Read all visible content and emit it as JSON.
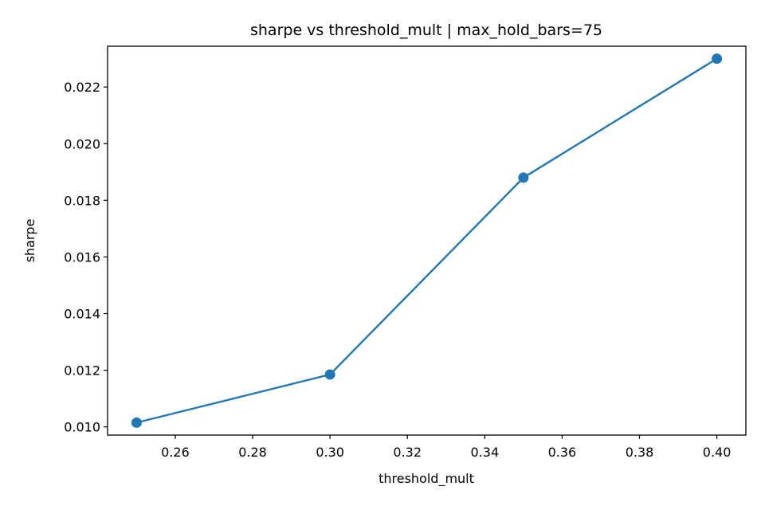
{
  "chart_data": {
    "type": "line",
    "title": "sharpe vs threshold_mult | max_hold_bars=75",
    "xlabel": "threshold_mult",
    "ylabel": "sharpe",
    "x": [
      0.25,
      0.3,
      0.35,
      0.4
    ],
    "series": [
      {
        "values": [
          0.01015,
          0.01185,
          0.0188,
          0.023
        ]
      }
    ],
    "xlim": [
      0.2425,
      0.4075
    ],
    "ylim": [
      0.00971,
      0.02344
    ],
    "xticks": [
      0.26,
      0.28,
      0.3,
      0.32,
      0.34,
      0.36,
      0.38,
      0.4
    ],
    "xtick_labels": [
      "0.26",
      "0.28",
      "0.30",
      "0.32",
      "0.34",
      "0.36",
      "0.38",
      "0.40"
    ],
    "yticks": [
      0.01,
      0.012,
      0.014,
      0.016,
      0.018,
      0.02,
      0.022
    ],
    "ytick_labels": [
      "0.010",
      "0.012",
      "0.014",
      "0.016",
      "0.018",
      "0.020",
      "0.022"
    ],
    "grid": false,
    "legend": "none",
    "color": "#1f77b4",
    "marker": "circle"
  }
}
